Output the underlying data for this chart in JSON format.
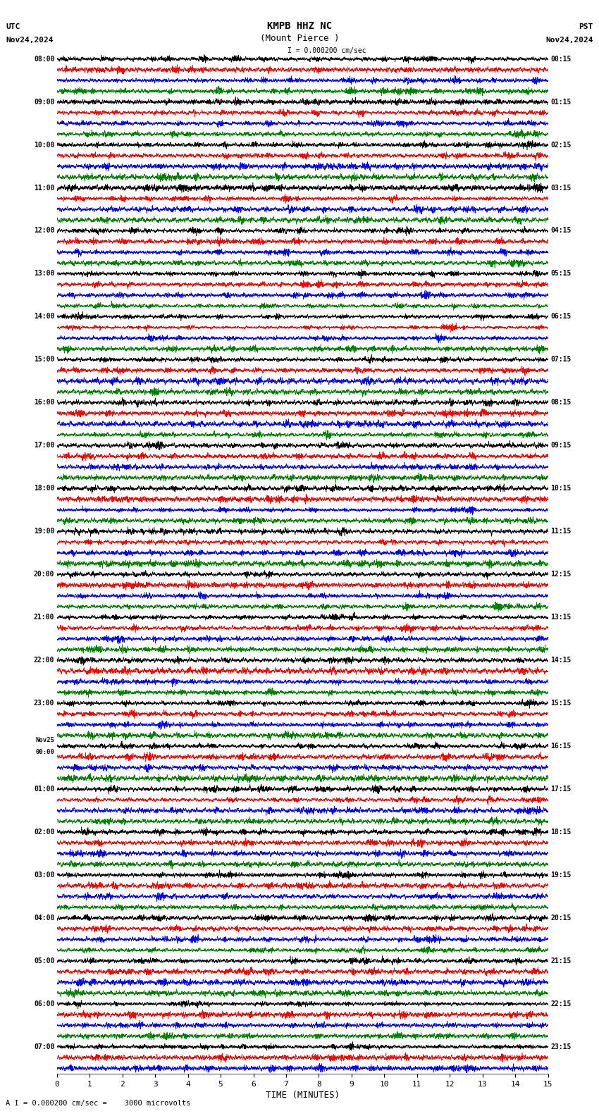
{
  "title_line1": "KMPB HHZ NC",
  "title_line2": "(Mount Pierce )",
  "scale_text": "I = 0.000200 cm/sec",
  "utc_label": "UTC",
  "pst_label": "PST",
  "date_left": "Nov24,2024",
  "date_right": "Nov24,2024",
  "xlabel": "TIME (MINUTES)",
  "footer": "A I = 0.000200 cm/sec =    3000 microvolts",
  "xlim": [
    0,
    15
  ],
  "xticks": [
    0,
    1,
    2,
    3,
    4,
    5,
    6,
    7,
    8,
    9,
    10,
    11,
    12,
    13,
    14,
    15
  ],
  "colors": [
    "black",
    "red",
    "blue",
    "green"
  ],
  "bg_color": "white",
  "fig_width": 8.5,
  "fig_height": 15.84,
  "left_labels_utc": [
    "08:00",
    "",
    "",
    "",
    "09:00",
    "",
    "",
    "",
    "10:00",
    "",
    "",
    "",
    "11:00",
    "",
    "",
    "",
    "12:00",
    "",
    "",
    "",
    "13:00",
    "",
    "",
    "",
    "14:00",
    "",
    "",
    "",
    "15:00",
    "",
    "",
    "",
    "16:00",
    "",
    "",
    "",
    "17:00",
    "",
    "",
    "",
    "18:00",
    "",
    "",
    "",
    "19:00",
    "",
    "",
    "",
    "20:00",
    "",
    "",
    "",
    "21:00",
    "",
    "",
    "",
    "22:00",
    "",
    "",
    "",
    "23:00",
    "",
    "",
    "",
    "Nov25 00:00",
    "",
    "",
    "",
    "01:00",
    "",
    "",
    "",
    "02:00",
    "",
    "",
    "",
    "03:00",
    "",
    "",
    "",
    "04:00",
    "",
    "",
    "",
    "05:00",
    "",
    "",
    "",
    "06:00",
    "",
    "",
    "",
    "07:00",
    "",
    ""
  ],
  "right_labels_pst": [
    "00:15",
    "",
    "",
    "",
    "01:15",
    "",
    "",
    "",
    "02:15",
    "",
    "",
    "",
    "03:15",
    "",
    "",
    "",
    "04:15",
    "",
    "",
    "",
    "05:15",
    "",
    "",
    "",
    "06:15",
    "",
    "",
    "",
    "07:15",
    "",
    "",
    "",
    "08:15",
    "",
    "",
    "",
    "09:15",
    "",
    "",
    "",
    "10:15",
    "",
    "",
    "",
    "11:15",
    "",
    "",
    "",
    "12:15",
    "",
    "",
    "",
    "13:15",
    "",
    "",
    "",
    "14:15",
    "",
    "",
    "",
    "15:15",
    "",
    "",
    "",
    "16:15",
    "",
    "",
    "",
    "17:15",
    "",
    "",
    "",
    "18:15",
    "",
    "",
    "",
    "19:15",
    "",
    "",
    "",
    "20:15",
    "",
    "",
    "",
    "21:15",
    "",
    "",
    "",
    "22:15",
    "",
    "",
    "",
    "23:15",
    "",
    ""
  ]
}
